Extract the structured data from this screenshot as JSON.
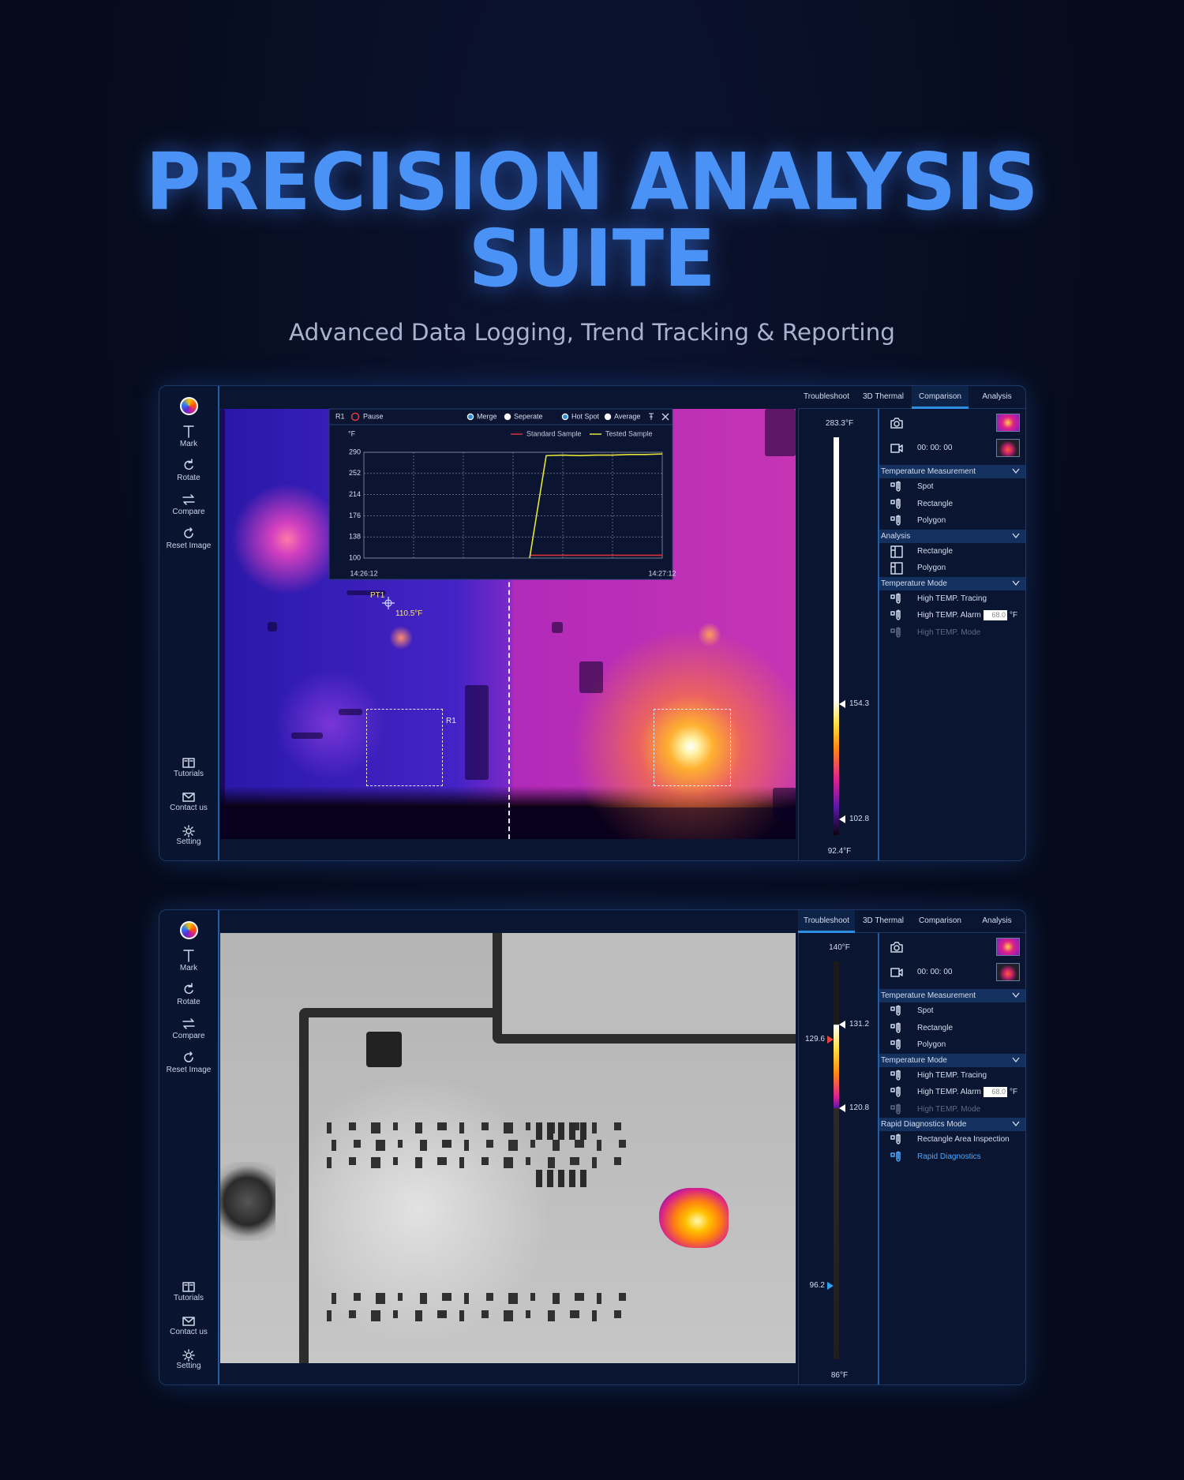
{
  "header": {
    "title": [
      "PRECISION ANALYSIS",
      "SUITE"
    ],
    "subtitle": "Advanced Data Logging, Trend Tracking & Reporting"
  },
  "panels": [
    {
      "tools": [
        "Mark",
        "Rotate",
        "Compare",
        "Reset Image"
      ],
      "bottom_tools": [
        "Tutorials",
        "Contact us",
        "Setting"
      ],
      "tabs": [
        "Troubleshoot",
        "3D Thermal",
        "Comparison",
        "Analysis"
      ],
      "active_tab": 2,
      "timer": "00: 00: 00",
      "scale": {
        "max": "283.3°F",
        "min": "92.4°F",
        "markers": [
          {
            "label": "154.3",
            "side": "right",
            "color": "#ffffff"
          },
          {
            "label": "102.8",
            "side": "right",
            "color": "#ffffff"
          }
        ]
      },
      "sections": [
        {
          "title": "Temperature Measurement",
          "items": [
            "Spot",
            "Rectangle",
            "Polygon"
          ]
        },
        {
          "title": "Analysis",
          "items": [
            "Rectangle",
            "Polygon"
          ]
        },
        {
          "title": "Temperature Mode",
          "items": [
            "High TEMP. Tracing",
            "High TEMP. Alarm",
            "High TEMP. Mode"
          ],
          "input": {
            "item": 1,
            "value": "68.0",
            "unit": "°F"
          },
          "dim": 2
        }
      ],
      "overlay": {
        "point": "PT1",
        "point_temp": "110.5°F",
        "region": "R1"
      },
      "chart": {
        "type": "line",
        "toolbar": {
          "region": "R1",
          "pause": "Pause",
          "modes": [
            "Merge",
            "Seperate"
          ],
          "stats": [
            "Hot Spot",
            "Average"
          ]
        },
        "unit": "°F",
        "categories": [
          "14:26:12",
          null,
          null,
          null,
          null,
          null,
          null,
          null,
          null,
          null,
          null,
          null,
          null,
          null,
          null,
          null,
          null,
          null,
          "14:27:12"
        ],
        "series": [
          {
            "name": "Standard Sample",
            "color": "#d8343a",
            "values": [
              null,
              null,
              null,
              null,
              null,
              null,
              null,
              null,
              null,
              null,
              105,
              105,
              105,
              105,
              105,
              105,
              105,
              105,
              105
            ]
          },
          {
            "name": "Tested Sample",
            "color": "#e6e43a",
            "values": [
              null,
              null,
              null,
              null,
              null,
              null,
              null,
              null,
              null,
              null,
              100,
              284,
              285,
              284,
              285,
              285,
              286,
              286,
              287
            ]
          }
        ],
        "ylim": [
          100,
          290
        ],
        "yticks": [
          290,
          252,
          214,
          176,
          138,
          100
        ],
        "grid": true
      }
    },
    {
      "tools": [
        "Mark",
        "Rotate",
        "Compare",
        "Reset Image"
      ],
      "bottom_tools": [
        "Tutorials",
        "Contact us",
        "Setting"
      ],
      "tabs": [
        "Troubleshoot",
        "3D Thermal",
        "Comparison",
        "Analysis"
      ],
      "active_tab": 0,
      "timer": "00: 00: 00",
      "scale": {
        "max": "140°F",
        "min": "86°F",
        "markers": [
          {
            "label": "131.2",
            "side": "right",
            "color": "#ffffff"
          },
          {
            "label": "129.6",
            "side": "left",
            "color": "#e8423a"
          },
          {
            "label": "120.8",
            "side": "right",
            "color": "#ffffff"
          },
          {
            "label": "96.2",
            "side": "left",
            "color": "#2ea0f0"
          }
        ]
      },
      "sections": [
        {
          "title": "Temperature Measurement",
          "items": [
            "Spot",
            "Rectangle",
            "Polygon"
          ]
        },
        {
          "title": "Temperature Mode",
          "items": [
            "High TEMP. Tracing",
            "High TEMP. Alarm",
            "High TEMP. Mode"
          ],
          "input": {
            "item": 1,
            "value": "68.0",
            "unit": "°F"
          },
          "dim": 2
        },
        {
          "title": "Rapid Diagnostics Mode",
          "items": [
            "Rectangle Area Inspection",
            "Rapid Diagnostics"
          ],
          "highlight": 1
        }
      ]
    }
  ]
}
